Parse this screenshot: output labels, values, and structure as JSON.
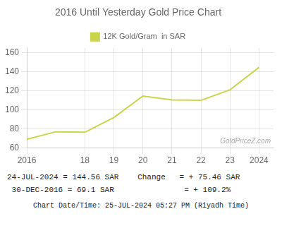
{
  "chart_data": {
    "type": "line",
    "title": "2016 Until Yesterday Gold Price Chart",
    "x": [
      2016,
      2017,
      2018,
      2019,
      2020,
      2021,
      2022,
      2023,
      2024
    ],
    "series": [
      {
        "name": "12K Gold/Gram  in SAR",
        "color": "#c8d44a",
        "values": [
          69.1,
          77.0,
          76.5,
          92.0,
          114.5,
          110.5,
          110.0,
          121.0,
          144.56
        ]
      }
    ],
    "xlim": [
      2016,
      2024.5
    ],
    "xticks": [
      2016,
      {
        "value": 2018,
        "label": "18"
      },
      {
        "value": 2019,
        "label": "19"
      },
      {
        "value": 2020,
        "label": "20"
      },
      {
        "value": 2021,
        "label": "21"
      },
      {
        "value": 2022,
        "label": "22"
      },
      {
        "value": 2023,
        "label": "23"
      },
      2024
    ],
    "ylim": [
      60,
      165
    ],
    "yticks": [
      60,
      80,
      100,
      120,
      140,
      160
    ],
    "grid": true,
    "legend": "top",
    "annotations": [
      "GoldPriceZ.com",
      "24-JUL-2024 = 144.56 SAR",
      "Change   = + 75.46 SAR",
      " 30-DEC-2016 = 69.1 SAR",
      "          = + 109.2%",
      "Chart Date/Time: 25-JUL-2024 05:27 PM (Riyadh Time)"
    ]
  }
}
